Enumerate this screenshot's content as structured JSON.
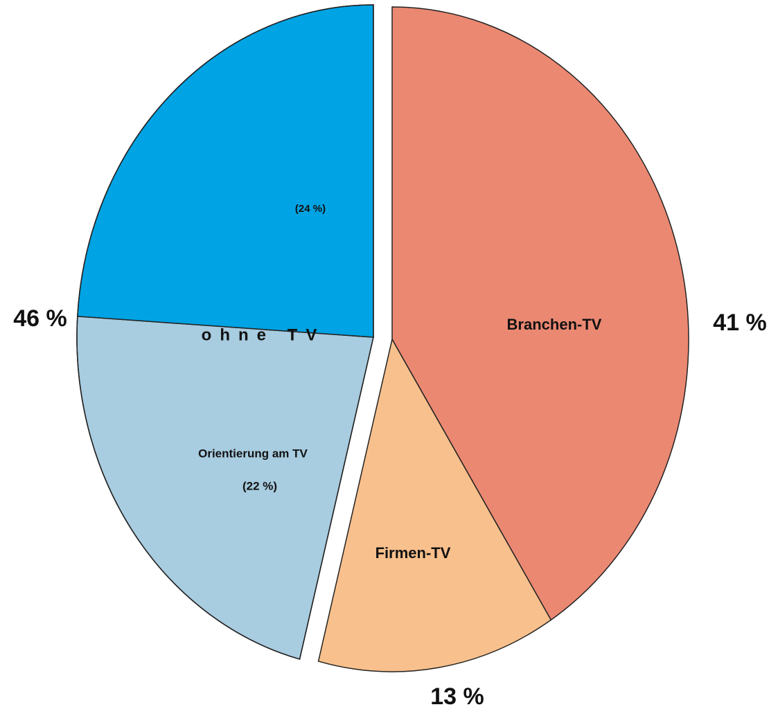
{
  "chart_data": {
    "type": "pie",
    "categories": [
      "Branchen-TV",
      "Firmen-TV",
      "Orientierung am TV",
      null
    ],
    "values": [
      41,
      13,
      22,
      24
    ],
    "value_labels": [
      "41 %",
      "13 %",
      "(22 %)",
      "(24 %)"
    ],
    "colors": [
      "#eb8872",
      "#f8c08c",
      "#a8cce0",
      "#00a3e3"
    ],
    "group": {
      "label": "ohne TV",
      "value": 46,
      "value_label": "46 %"
    }
  }
}
